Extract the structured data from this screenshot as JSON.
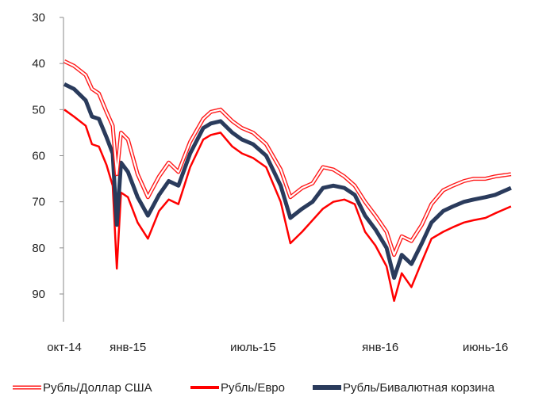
{
  "chart_data": {
    "type": "line",
    "title": "",
    "xlabel": "",
    "ylabel": "",
    "y_inverted": true,
    "ylim": [
      30,
      95
    ],
    "y_ticks": [
      "30",
      "40",
      "50",
      "60",
      "70",
      "80",
      "90"
    ],
    "x_range": [
      "2014-10-01",
      "2016-07-15"
    ],
    "x_ticks": [
      {
        "date": "2014-10-01",
        "label": "окт-14"
      },
      {
        "date": "2015-01-01",
        "label": "янв-15"
      },
      {
        "date": "2015-07-01",
        "label": "июль-15"
      },
      {
        "date": "2016-01-01",
        "label": "янв-16"
      },
      {
        "date": "2016-06-01",
        "label": "июнь-16"
      }
    ],
    "grid": false,
    "legend_position": "bottom",
    "series": [
      {
        "name": "Рубль/Доллар США",
        "color": "#ff1a1a",
        "style": "double-outline",
        "points": [
          [
            "2014-10-01",
            39.5
          ],
          [
            "2014-10-15",
            40.5
          ],
          [
            "2014-11-01",
            42.5
          ],
          [
            "2014-11-10",
            45.5
          ],
          [
            "2014-11-20",
            46.5
          ],
          [
            "2014-12-01",
            50.5
          ],
          [
            "2014-12-10",
            53.5
          ],
          [
            "2014-12-16",
            64.0
          ],
          [
            "2014-12-22",
            55.0
          ],
          [
            "2015-01-01",
            56.5
          ],
          [
            "2015-01-15",
            64.0
          ],
          [
            "2015-01-30",
            69.0
          ],
          [
            "2015-02-15",
            64.5
          ],
          [
            "2015-03-01",
            61.5
          ],
          [
            "2015-03-15",
            63.5
          ],
          [
            "2015-04-01",
            57.0
          ],
          [
            "2015-04-20",
            52.0
          ],
          [
            "2015-05-01",
            50.5
          ],
          [
            "2015-05-15",
            50.0
          ],
          [
            "2015-06-01",
            52.5
          ],
          [
            "2015-06-15",
            54.0
          ],
          [
            "2015-07-01",
            55.0
          ],
          [
            "2015-07-20",
            57.5
          ],
          [
            "2015-08-10",
            63.0
          ],
          [
            "2015-08-24",
            69.0
          ],
          [
            "2015-09-10",
            67.0
          ],
          [
            "2015-09-25",
            66.0
          ],
          [
            "2015-10-10",
            62.5
          ],
          [
            "2015-10-25",
            63.0
          ],
          [
            "2015-11-10",
            64.5
          ],
          [
            "2015-11-25",
            66.5
          ],
          [
            "2015-12-10",
            70.0
          ],
          [
            "2015-12-25",
            73.0
          ],
          [
            "2016-01-10",
            76.5
          ],
          [
            "2016-01-21",
            81.5
          ],
          [
            "2016-02-01",
            77.5
          ],
          [
            "2016-02-15",
            78.5
          ],
          [
            "2016-03-01",
            75.0
          ],
          [
            "2016-03-15",
            70.5
          ],
          [
            "2016-04-01",
            67.5
          ],
          [
            "2016-04-15",
            66.5
          ],
          [
            "2016-05-01",
            65.5
          ],
          [
            "2016-05-15",
            65.0
          ],
          [
            "2016-06-01",
            65.0
          ],
          [
            "2016-06-15",
            64.5
          ],
          [
            "2016-07-08",
            64.0
          ]
        ]
      },
      {
        "name": "Рубль/Евро",
        "color": "#ff0000",
        "style": "solid",
        "points": [
          [
            "2014-10-01",
            50.0
          ],
          [
            "2014-10-15",
            51.5
          ],
          [
            "2014-11-01",
            53.5
          ],
          [
            "2014-11-10",
            57.5
          ],
          [
            "2014-11-20",
            58.0
          ],
          [
            "2014-12-01",
            62.0
          ],
          [
            "2014-12-10",
            66.5
          ],
          [
            "2014-12-16",
            84.5
          ],
          [
            "2014-12-22",
            68.0
          ],
          [
            "2015-01-01",
            69.0
          ],
          [
            "2015-01-15",
            74.5
          ],
          [
            "2015-01-30",
            78.0
          ],
          [
            "2015-02-15",
            72.0
          ],
          [
            "2015-03-01",
            69.5
          ],
          [
            "2015-03-15",
            70.5
          ],
          [
            "2015-04-01",
            62.5
          ],
          [
            "2015-04-20",
            56.5
          ],
          [
            "2015-05-01",
            55.5
          ],
          [
            "2015-05-15",
            55.0
          ],
          [
            "2015-06-01",
            58.0
          ],
          [
            "2015-06-15",
            59.5
          ],
          [
            "2015-07-01",
            60.5
          ],
          [
            "2015-07-20",
            62.5
          ],
          [
            "2015-08-10",
            70.0
          ],
          [
            "2015-08-24",
            79.0
          ],
          [
            "2015-09-10",
            76.5
          ],
          [
            "2015-09-25",
            74.0
          ],
          [
            "2015-10-10",
            71.5
          ],
          [
            "2015-10-25",
            70.0
          ],
          [
            "2015-11-10",
            69.5
          ],
          [
            "2015-11-25",
            70.5
          ],
          [
            "2015-12-10",
            76.5
          ],
          [
            "2015-12-25",
            79.5
          ],
          [
            "2016-01-10",
            84.0
          ],
          [
            "2016-01-21",
            91.5
          ],
          [
            "2016-02-01",
            85.5
          ],
          [
            "2016-02-15",
            88.5
          ],
          [
            "2016-03-01",
            83.0
          ],
          [
            "2016-03-15",
            78.0
          ],
          [
            "2016-04-01",
            76.5
          ],
          [
            "2016-04-15",
            75.5
          ],
          [
            "2016-05-01",
            74.5
          ],
          [
            "2016-05-15",
            74.0
          ],
          [
            "2016-06-01",
            73.5
          ],
          [
            "2016-06-15",
            72.5
          ],
          [
            "2016-07-08",
            71.0
          ]
        ]
      },
      {
        "name": "Рубль/Бивалютная корзина",
        "color": "#2a3b5c",
        "style": "thick",
        "points": [
          [
            "2014-10-01",
            44.5
          ],
          [
            "2014-10-15",
            45.5
          ],
          [
            "2014-11-01",
            48.0
          ],
          [
            "2014-11-10",
            51.5
          ],
          [
            "2014-11-20",
            52.0
          ],
          [
            "2014-12-01",
            56.0
          ],
          [
            "2014-12-10",
            59.5
          ],
          [
            "2014-12-16",
            75.0
          ],
          [
            "2014-12-22",
            61.5
          ],
          [
            "2015-01-01",
            63.5
          ],
          [
            "2015-01-15",
            69.0
          ],
          [
            "2015-01-30",
            73.0
          ],
          [
            "2015-02-15",
            68.5
          ],
          [
            "2015-03-01",
            65.5
          ],
          [
            "2015-03-15",
            66.5
          ],
          [
            "2015-04-01",
            59.5
          ],
          [
            "2015-04-20",
            54.0
          ],
          [
            "2015-05-01",
            53.0
          ],
          [
            "2015-05-15",
            52.5
          ],
          [
            "2015-06-01",
            55.0
          ],
          [
            "2015-06-15",
            56.5
          ],
          [
            "2015-07-01",
            57.5
          ],
          [
            "2015-07-20",
            60.0
          ],
          [
            "2015-08-10",
            66.5
          ],
          [
            "2015-08-24",
            73.5
          ],
          [
            "2015-09-10",
            71.5
          ],
          [
            "2015-09-25",
            70.0
          ],
          [
            "2015-10-10",
            67.0
          ],
          [
            "2015-10-25",
            66.5
          ],
          [
            "2015-11-10",
            67.0
          ],
          [
            "2015-11-25",
            68.5
          ],
          [
            "2015-12-10",
            73.0
          ],
          [
            "2015-12-25",
            76.0
          ],
          [
            "2016-01-10",
            80.0
          ],
          [
            "2016-01-21",
            86.5
          ],
          [
            "2016-02-01",
            81.5
          ],
          [
            "2016-02-15",
            83.5
          ],
          [
            "2016-03-01",
            79.0
          ],
          [
            "2016-03-15",
            74.5
          ],
          [
            "2016-04-01",
            72.0
          ],
          [
            "2016-04-15",
            71.0
          ],
          [
            "2016-05-01",
            70.0
          ],
          [
            "2016-05-15",
            69.5
          ],
          [
            "2016-06-01",
            69.0
          ],
          [
            "2016-06-15",
            68.5
          ],
          [
            "2016-07-08",
            67.0
          ]
        ]
      }
    ]
  }
}
